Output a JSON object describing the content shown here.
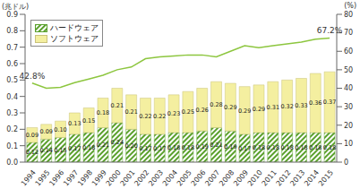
{
  "chart_data": {
    "type": "bar",
    "stacked": true,
    "grid": false,
    "legend": "top-left",
    "data_labels": true,
    "y_label": "(兆ドル)",
    "y2_label": "(%)",
    "categories": [
      "1994",
      "1995",
      "1996",
      "1997",
      "1998",
      "1999",
      "2000",
      "2001",
      "2002",
      "2003",
      "2004",
      "2005",
      "2006",
      "2007",
      "2008",
      "2009",
      "2010",
      "2011",
      "2012",
      "2013",
      "2014",
      "2015"
    ],
    "ylim": [
      0,
      0.9
    ],
    "yticks": [
      {
        "value": 0,
        "label": "0.0"
      },
      0.1,
      0.2,
      0.3,
      0.4,
      0.5,
      0.6,
      0.7,
      0.8,
      0.9
    ],
    "y2lim": [
      0,
      80
    ],
    "y2ticks": [
      0,
      10,
      20,
      30,
      40,
      50,
      60,
      70,
      80
    ],
    "series": [
      {
        "name": "ハードウェア",
        "type": "bar",
        "color": "#5aa02c",
        "values": [
          0.12,
          0.14,
          0.15,
          0.17,
          0.18,
          0.21,
          0.24,
          0.2,
          0.17,
          0.17,
          0.18,
          0.18,
          0.19,
          0.21,
          0.19,
          0.17,
          0.18,
          0.18,
          0.18,
          0.18,
          0.18,
          0.18
        ],
        "value_labels": [
          "0.12",
          "0.14",
          "0.15",
          "0.17",
          "0.18",
          "0.21",
          "0.24",
          "0.20",
          "0.17",
          "0.17",
          "0.18",
          "0.18",
          "0.19",
          "0.21",
          "0.19",
          "0.17",
          "0.18",
          "0.18",
          "0.18",
          "0.18",
          "0.18",
          "0.18"
        ]
      },
      {
        "name": "ソフトウェア",
        "type": "bar",
        "color": "#f4efa0",
        "values": [
          0.09,
          0.09,
          0.1,
          0.13,
          0.15,
          0.18,
          0.21,
          0.21,
          0.22,
          0.22,
          0.23,
          0.25,
          0.26,
          0.28,
          0.29,
          0.29,
          0.29,
          0.31,
          0.32,
          0.33,
          0.36,
          0.37
        ],
        "value_labels": [
          "0.09",
          "0.09",
          "0.10",
          "0.13",
          "0.15",
          "0.18",
          "0.21",
          "0.21",
          "0.22",
          "0.22",
          "0.23",
          "0.25",
          "0.26",
          "0.28",
          "0.29",
          "0.29",
          "0.29",
          "0.31",
          "0.32",
          "0.33",
          "0.36",
          "0.37"
        ]
      },
      {
        "type": "line",
        "axis": "y2",
        "color": "#8dc63f",
        "marker": "none",
        "values": [
          42.8,
          40,
          40.5,
          43,
          45,
          47,
          50,
          51.5,
          56,
          57,
          57.5,
          58,
          58,
          57,
          60,
          63,
          62,
          63,
          64,
          65,
          66.5,
          67.2
        ],
        "value_labels": [
          "42.8%",
          null,
          null,
          null,
          null,
          null,
          null,
          null,
          null,
          null,
          null,
          null,
          null,
          null,
          null,
          null,
          null,
          null,
          null,
          null,
          null,
          "67.2%"
        ]
      }
    ]
  }
}
